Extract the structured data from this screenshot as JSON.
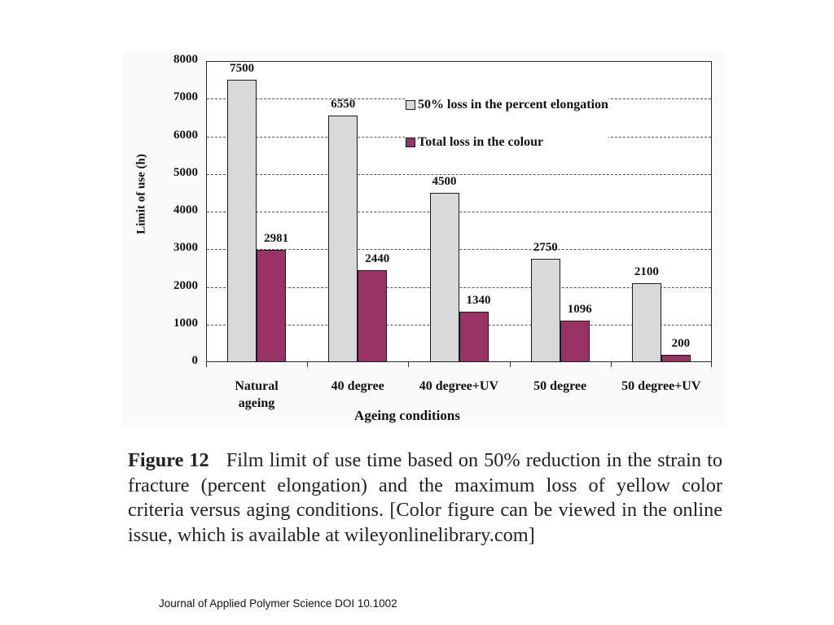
{
  "chart_data": {
    "type": "bar",
    "title": "",
    "xlabel": "Ageing conditions",
    "ylabel": "Limit of use (h)",
    "ylim": [
      0,
      8000
    ],
    "yticks": [
      0,
      1000,
      2000,
      3000,
      4000,
      5000,
      6000,
      7000,
      8000
    ],
    "grid": true,
    "legend_position": "upper right (inside plot)",
    "categories": [
      "Natural ageing",
      "40 degree",
      "40 degree+UV",
      "50 degree",
      "50 degree+UV"
    ],
    "category_labels": [
      [
        "Natural",
        "ageing"
      ],
      [
        "40 degree"
      ],
      [
        "40 degree+UV"
      ],
      [
        "50 degree"
      ],
      [
        "50 degree+UV"
      ]
    ],
    "series": [
      {
        "name": "50% loss in the percent elongation",
        "color": "#d9d9d9",
        "values": [
          7500,
          6550,
          4500,
          2750,
          2100
        ]
      },
      {
        "name": "Total loss in the colour",
        "color": "#993366",
        "values": [
          2981,
          2440,
          1340,
          1096,
          200
        ]
      }
    ]
  },
  "caption": {
    "figure_number": "Figure 12",
    "text": "Film limit of use time based on 50% reduction in the strain to fracture (percent elongation) and the maximum loss of yellow color criteria versus aging conditions. [Color figure can be viewed in the online issue, which is available at wileyonlinelibrary.com]"
  },
  "footer": "Journal of Applied Polymer Science DOI 10.1002"
}
